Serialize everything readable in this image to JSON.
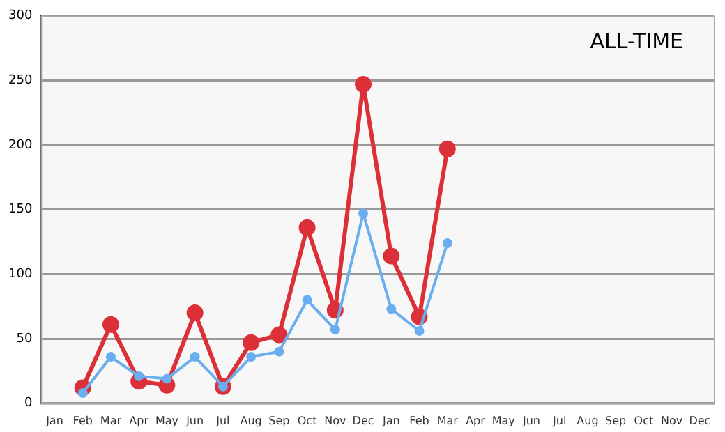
{
  "chart_data": {
    "type": "line",
    "annotations": [
      "ALL-TIME"
    ],
    "categories": [
      "Jan",
      "Feb",
      "Mar",
      "Apr",
      "May",
      "Jun",
      "Jul",
      "Aug",
      "Sep",
      "Oct",
      "Nov",
      "Dec",
      "Jan",
      "Feb",
      "Mar",
      "Apr",
      "May",
      "Jun",
      "Jul",
      "Aug",
      "Sep",
      "Oct",
      "Nov",
      "Dec"
    ],
    "series": [
      {
        "color": "#6aaef0",
        "values": [
          null,
          8,
          36,
          21,
          19,
          36,
          13,
          36,
          40,
          80,
          57,
          147,
          73,
          56,
          124,
          null,
          null,
          null,
          null,
          null,
          null,
          null,
          null,
          null
        ]
      },
      {
        "color": "#dc3039",
        "values": [
          null,
          12,
          61,
          17,
          14,
          70,
          13,
          47,
          53,
          136,
          72,
          247,
          114,
          67,
          197,
          null,
          null,
          null,
          null,
          null,
          null,
          null,
          null,
          null
        ]
      }
    ],
    "ylim": [
      0,
      300
    ],
    "yticks": [
      0,
      50,
      100,
      150,
      200,
      250,
      300
    ],
    "grid": "y",
    "legend": false,
    "marker": "circle",
    "line_style": "solid"
  }
}
